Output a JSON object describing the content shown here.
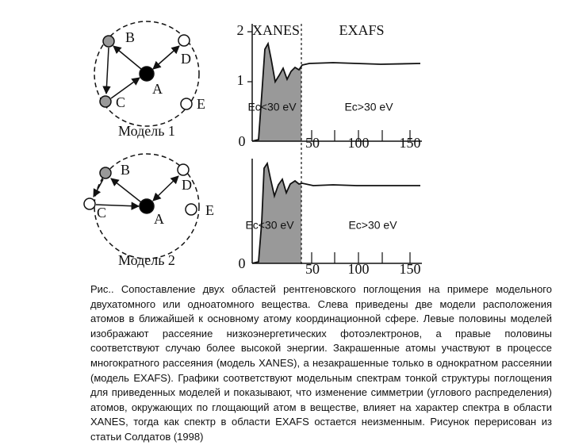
{
  "model1": {
    "atoms": [
      "B",
      "D",
      "A",
      "C",
      "E"
    ],
    "title": "Модель 1"
  },
  "model2": {
    "atoms": [
      "B",
      "D",
      "A",
      "C",
      "E"
    ],
    "title": "Модель 2"
  },
  "spectrum1": {
    "regions": [
      "XANES",
      "EXAFS"
    ],
    "energy_labels": [
      "Ec<30 eV",
      "Ec>30 eV"
    ],
    "yticks": [
      "2",
      "1",
      "0"
    ],
    "xticks": [
      "50",
      "100",
      "150"
    ]
  },
  "spectrum2": {
    "energy_labels": [
      "Ec<30 eV",
      "Ec>30 eV"
    ],
    "yticks": [
      "0"
    ],
    "xticks": [
      "50",
      "100",
      "150"
    ]
  },
  "caption": "Рис.. Сопоставление двух областей рентгеновского поглощения на примере модельного двухатомного или одноатомного вещества. Слева приведены две модели расположения атомов в ближайшей к основному атому координационной сфере. Левые половины моделей изображают рассеяние низкоэнергетических фотоэлектронов, а правые половины соответствуют случаю более высокой энергии. Закрашенные атомы участвуют в процессе многократного рассеяния (модель XANES), а незакрашенные только в однократном рассеянии (модель EXAFS). Графики соответствуют модельным спектрам тонкой структуры поглощения для приведенных моделей и показывают, что изменение симметрии (углового распределения) атомов, окружающих по глощающий атом в веществе, влияет на характер спектра в области XANES, тогда как спектр в области EXAFS остается неизменным. Рисунок перерисован из статьи Солдатов (1998)"
}
